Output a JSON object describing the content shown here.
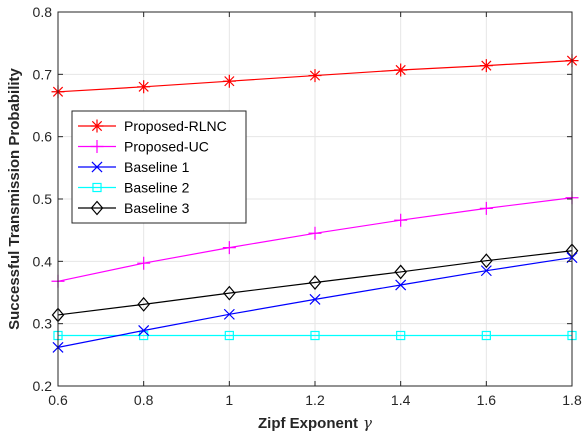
{
  "chart_data": {
    "type": "line",
    "xlabel": "Zipf Exponent",
    "xlabel_symbol": "γ",
    "ylabel": "Successful Transmission Probability",
    "x": [
      0.6,
      0.8,
      1.0,
      1.2,
      1.4,
      1.6,
      1.8
    ],
    "xlim": [
      0.6,
      1.8
    ],
    "ylim": [
      0.2,
      0.8
    ],
    "xticks": [
      "0.6",
      "0.8",
      "1",
      "1.2",
      "1.4",
      "1.6",
      "1.8"
    ],
    "yticks": [
      "0.2",
      "0.3",
      "0.4",
      "0.5",
      "0.6",
      "0.7",
      "0.8"
    ],
    "grid": true,
    "legend_position": "middle-left",
    "series": [
      {
        "name": "Proposed-RLNC",
        "color": "#ff0000",
        "marker": "asterisk",
        "values": [
          0.672,
          0.68,
          0.689,
          0.698,
          0.707,
          0.714,
          0.722
        ]
      },
      {
        "name": "Proposed-UC",
        "color": "#ff00ff",
        "marker": "plus",
        "values": [
          0.368,
          0.397,
          0.422,
          0.445,
          0.466,
          0.485,
          0.502
        ]
      },
      {
        "name": "Baseline 1",
        "color": "#0000ff",
        "marker": "x",
        "values": [
          0.262,
          0.289,
          0.315,
          0.339,
          0.362,
          0.385,
          0.406
        ]
      },
      {
        "name": "Baseline 2",
        "color": "#00ffff",
        "marker": "square",
        "values": [
          0.281,
          0.281,
          0.281,
          0.281,
          0.281,
          0.281,
          0.281
        ]
      },
      {
        "name": "Baseline 3",
        "color": "#000000",
        "marker": "diamond",
        "values": [
          0.314,
          0.331,
          0.349,
          0.366,
          0.383,
          0.401,
          0.417
        ]
      }
    ]
  }
}
